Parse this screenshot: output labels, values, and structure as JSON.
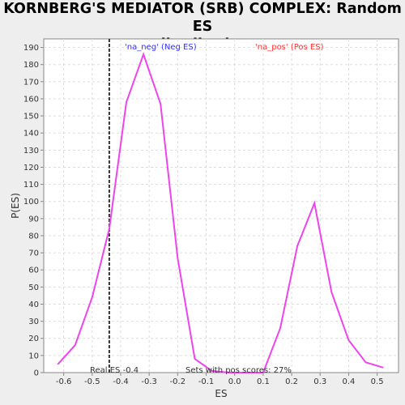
{
  "chart_data": {
    "type": "line",
    "title": "KORNBERG'S MEDIATOR (SRB) COMPLEX: Random ES\ndistribution",
    "xlabel": "ES",
    "ylabel": "P(ES)",
    "xlim": [
      -0.67,
      0.575
    ],
    "ylim": [
      0,
      195
    ],
    "x_ticks": [
      -0.6,
      -0.5,
      -0.4,
      -0.3,
      -0.2,
      -0.1,
      0.0,
      0.1,
      0.2,
      0.3,
      0.4,
      0.5
    ],
    "x_tick_labels": [
      "-0.6",
      "-0.5",
      "-0.4",
      "-0.3",
      "-0.2",
      "-0.1",
      "0.0",
      "0.1",
      "0.2",
      "0.3",
      "0.4",
      "0.5"
    ],
    "y_ticks": [
      0,
      10,
      20,
      30,
      40,
      50,
      60,
      70,
      80,
      90,
      100,
      110,
      120,
      130,
      140,
      150,
      160,
      170,
      180,
      190
    ],
    "y_tick_labels": [
      "0",
      "10",
      "20",
      "30",
      "40",
      "50",
      "60",
      "70",
      "80",
      "90",
      "100",
      "110",
      "120",
      "130",
      "140",
      "150",
      "160",
      "170",
      "180",
      "190"
    ],
    "grid": true,
    "line_color": "#ee44ee",
    "series": [
      {
        "x": [
          -0.62,
          -0.56,
          -0.5,
          -0.44,
          -0.38,
          -0.32,
          -0.26,
          -0.2,
          -0.14,
          -0.08,
          -0.02,
          0.04,
          0.1,
          0.16,
          0.22,
          0.28,
          0.34,
          0.4,
          0.46,
          0.52
        ],
        "y": [
          5,
          16,
          44,
          84,
          158,
          186,
          157,
          67,
          8,
          1,
          0,
          0,
          0,
          26,
          74,
          99,
          47,
          19,
          6,
          3
        ]
      }
    ],
    "real_es": -0.44,
    "real_es_line_color": "#333333",
    "annotations": {
      "neg_label": "'na_neg' (Neg ES)",
      "neg_color": "#3333ff",
      "pos_label": "'na_pos' (Pos ES)",
      "pos_color": "#ff3333",
      "real_es_label": "Real ES -0.4",
      "pos_scores_label": "Sets with pos scores: 27%"
    }
  }
}
